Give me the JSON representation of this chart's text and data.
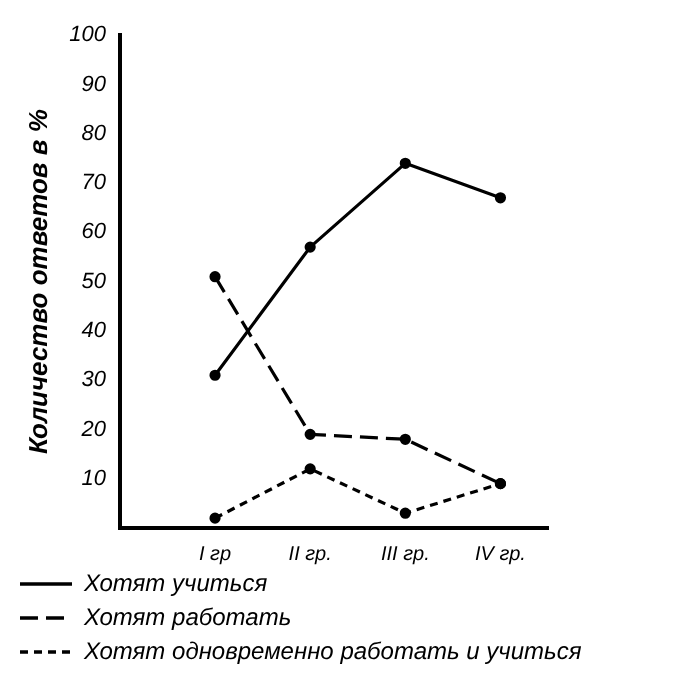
{
  "chart_data": {
    "type": "line",
    "ylabel": "Количество ответов в %",
    "categories": [
      "I гр",
      "II гр.",
      "III гр.",
      "IV гр."
    ],
    "series": [
      {
        "name": "Хотят учиться",
        "color": "#000000",
        "line_style": "solid",
        "values": [
          31,
          57,
          74,
          67
        ]
      },
      {
        "name": "Хотят работать",
        "color": "#000000",
        "line_style": "dashed",
        "values": [
          51,
          19,
          18,
          9
        ]
      },
      {
        "name": "Хотят одновременно работать и учиться",
        "color": "#000000",
        "line_style": "dotted",
        "values": [
          2,
          12,
          3,
          9
        ]
      }
    ],
    "ylim": [
      0,
      100
    ],
    "yticks": [
      10,
      20,
      30,
      40,
      50,
      60,
      70,
      80,
      90,
      100
    ],
    "marker": "circle",
    "grid": false,
    "legend": "bottom"
  }
}
